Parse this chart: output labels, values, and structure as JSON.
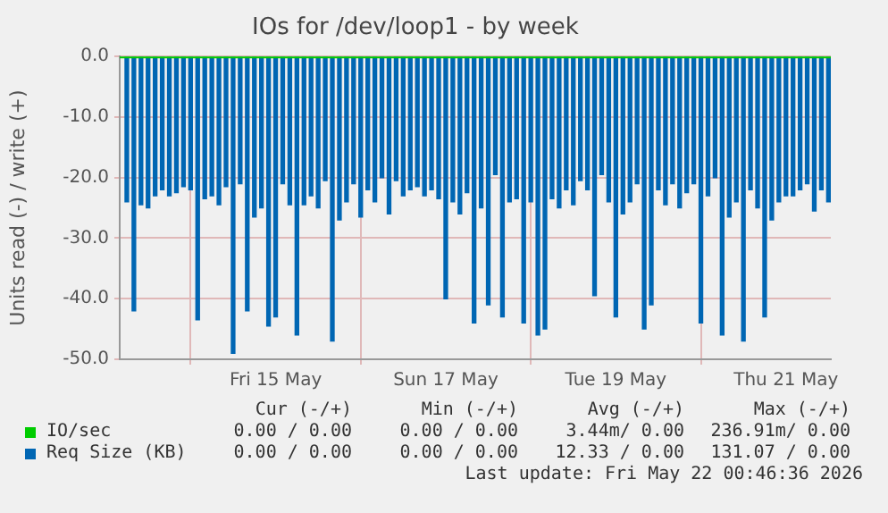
{
  "chart_data": {
    "type": "bar",
    "title": "IOs for /dev/loop1 - by week",
    "ylabel": "Units read (-) / write (+)",
    "x": [
      "2026-05-13T18:00",
      "2026-05-13T20:00",
      "2026-05-13T22:00",
      "2026-05-14T00:00",
      "2026-05-14T02:00",
      "2026-05-14T04:00",
      "2026-05-14T06:00",
      "2026-05-14T08:00",
      "2026-05-14T10:00",
      "2026-05-14T12:00",
      "2026-05-14T14:00",
      "2026-05-14T16:00",
      "2026-05-14T18:00",
      "2026-05-14T20:00",
      "2026-05-14T22:00",
      "2026-05-15T00:00",
      "2026-05-15T02:00",
      "2026-05-15T04:00",
      "2026-05-15T06:00",
      "2026-05-15T08:00",
      "2026-05-15T10:00",
      "2026-05-15T12:00",
      "2026-05-15T14:00",
      "2026-05-15T16:00",
      "2026-05-15T18:00",
      "2026-05-15T20:00",
      "2026-05-15T22:00",
      "2026-05-16T00:00",
      "2026-05-16T02:00",
      "2026-05-16T04:00",
      "2026-05-16T06:00",
      "2026-05-16T08:00",
      "2026-05-16T10:00",
      "2026-05-16T12:00",
      "2026-05-16T14:00",
      "2026-05-16T16:00",
      "2026-05-16T18:00",
      "2026-05-16T20:00",
      "2026-05-16T22:00",
      "2026-05-17T00:00",
      "2026-05-17T02:00",
      "2026-05-17T04:00",
      "2026-05-17T06:00",
      "2026-05-17T08:00",
      "2026-05-17T10:00",
      "2026-05-17T12:00",
      "2026-05-17T14:00",
      "2026-05-17T16:00",
      "2026-05-17T18:00",
      "2026-05-17T20:00",
      "2026-05-17T22:00",
      "2026-05-18T00:00",
      "2026-05-18T02:00",
      "2026-05-18T04:00",
      "2026-05-18T06:00",
      "2026-05-18T08:00",
      "2026-05-18T10:00",
      "2026-05-18T12:00",
      "2026-05-18T14:00",
      "2026-05-18T16:00",
      "2026-05-18T18:00",
      "2026-05-18T20:00",
      "2026-05-18T22:00",
      "2026-05-19T00:00",
      "2026-05-19T02:00",
      "2026-05-19T04:00",
      "2026-05-19T06:00",
      "2026-05-19T08:00",
      "2026-05-19T10:00",
      "2026-05-19T12:00",
      "2026-05-19T14:00",
      "2026-05-19T16:00",
      "2026-05-19T18:00",
      "2026-05-19T20:00",
      "2026-05-19T22:00",
      "2026-05-20T00:00",
      "2026-05-20T02:00",
      "2026-05-20T04:00",
      "2026-05-20T06:00",
      "2026-05-20T08:00",
      "2026-05-20T10:00",
      "2026-05-20T12:00",
      "2026-05-20T14:00",
      "2026-05-20T16:00",
      "2026-05-20T18:00",
      "2026-05-20T20:00",
      "2026-05-20T22:00",
      "2026-05-21T00:00",
      "2026-05-21T02:00",
      "2026-05-21T04:00",
      "2026-05-21T06:00",
      "2026-05-21T08:00",
      "2026-05-21T10:00",
      "2026-05-21T12:00",
      "2026-05-21T14:00",
      "2026-05-21T16:00",
      "2026-05-21T18:00",
      "2026-05-21T20:00",
      "2026-05-21T22:00",
      "2026-05-22T00:00"
    ],
    "series": [
      {
        "name": "IO/sec",
        "color": "#00cc00",
        "type": "line",
        "x": [
          "2026-05-13T16:00",
          "2026-05-22T00:40"
        ],
        "values": [
          0,
          0
        ]
      },
      {
        "name": "Req Size (KB)",
        "color": "#0066b3",
        "values": [
          -24,
          -42,
          -24.5,
          -25,
          -23,
          -22,
          -23,
          -22.5,
          -21.5,
          -22,
          -43.5,
          -23.5,
          -23,
          -24.5,
          -21.5,
          -49,
          -21,
          -42,
          -26.5,
          -25,
          -44.5,
          -43,
          -21,
          -24.5,
          -46,
          -24.5,
          -23,
          -25,
          -20.5,
          -47,
          -27,
          -24,
          -21,
          -26.5,
          -22,
          -24,
          -20,
          -26,
          -20.5,
          -23,
          -22,
          -21.5,
          -23,
          -22,
          -23.5,
          -40,
          -24,
          -26,
          -22.5,
          -44,
          -25,
          -41,
          -19.5,
          -43,
          -24,
          -23.5,
          -44,
          -24,
          -46,
          -45,
          -23.5,
          -25,
          -22,
          -24.5,
          -20.5,
          -22,
          -39.5,
          -19.5,
          -24,
          -43,
          -26,
          -24,
          -21,
          -45,
          -41,
          -22,
          -24.5,
          -21,
          -25,
          -22.5,
          -21,
          -44,
          -23,
          -20,
          -46,
          -26.5,
          -24,
          -47,
          -22,
          -25,
          -43,
          -27,
          -24,
          -23,
          -23,
          -22,
          -21,
          -25.5,
          -22,
          -24
        ]
      }
    ],
    "xlim": [
      "2026-05-13T16:00",
      "2026-05-22T00:40"
    ],
    "xticks": [
      {
        "value": "2026-05-15T12:00",
        "label": "Fri 15 May"
      },
      {
        "value": "2026-05-17T12:00",
        "label": "Sun 17 May"
      },
      {
        "value": "2026-05-19T12:00",
        "label": "Tue 19 May"
      },
      {
        "value": "2026-05-21T12:00",
        "label": "Thu 21 May"
      }
    ],
    "ylim": [
      -50,
      0
    ],
    "yticks": [
      {
        "value": -50,
        "label": "-50.0"
      },
      {
        "value": -40,
        "label": "-40.0"
      },
      {
        "value": -30,
        "label": "-30.0"
      },
      {
        "value": -20,
        "label": "-20.0"
      },
      {
        "value": -10,
        "label": "-10.0"
      },
      {
        "value": 0,
        "label": "0.0"
      }
    ],
    "grid": true,
    "legend": "bottom",
    "marker": "none",
    "annotations": [
      "Cur (-/+)",
      "Min (-/+)",
      "Avg (-/+)",
      "Max (-/+)",
      "0.00 / 0.00",
      "0.00 / 0.00",
      "3.44m/ 0.00",
      "236.91m/ 0.00",
      "0.00 / 0.00",
      "0.00 / 0.00",
      "12.33 / 0.00",
      "131.07 / 0.00",
      "Last update: Fri May 22 00:46:36 2026"
    ]
  }
}
